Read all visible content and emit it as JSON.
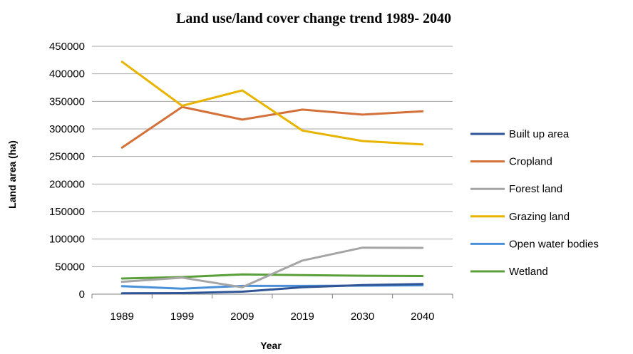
{
  "chart_data": {
    "type": "line",
    "title": "Land use/land cover change trend 1989- 2040",
    "xlabel": "Year",
    "ylabel": "Land area (ha)",
    "categories": [
      "1989",
      "1999",
      "2009",
      "2019",
      "2030",
      "2040"
    ],
    "ylim": [
      0,
      450000
    ],
    "yticks": [
      0,
      50000,
      100000,
      150000,
      200000,
      250000,
      300000,
      350000,
      400000,
      450000
    ],
    "grid": true,
    "legend_position": "right",
    "series": [
      {
        "name": "Built up area",
        "color": "#2f5597",
        "values": [
          1500,
          2000,
          4500,
          12500,
          16500,
          18500
        ]
      },
      {
        "name": "Cropland",
        "color": "#d4713a",
        "values": [
          266000,
          340000,
          317000,
          335000,
          326000,
          332000
        ]
      },
      {
        "name": "Forest land",
        "color": "#a5a5a5",
        "values": [
          22500,
          30000,
          12500,
          61000,
          84500,
          84000
        ]
      },
      {
        "name": "Grazing land",
        "color": "#e8b400",
        "values": [
          422000,
          342000,
          370000,
          297000,
          278000,
          272000
        ]
      },
      {
        "name": "Open water bodies",
        "color": "#4a90d9",
        "values": [
          14500,
          10000,
          15000,
          15000,
          15500,
          16000
        ]
      },
      {
        "name": "Wetland",
        "color": "#5b9f3a",
        "values": [
          28500,
          31000,
          36000,
          34500,
          33500,
          33000
        ]
      }
    ]
  }
}
